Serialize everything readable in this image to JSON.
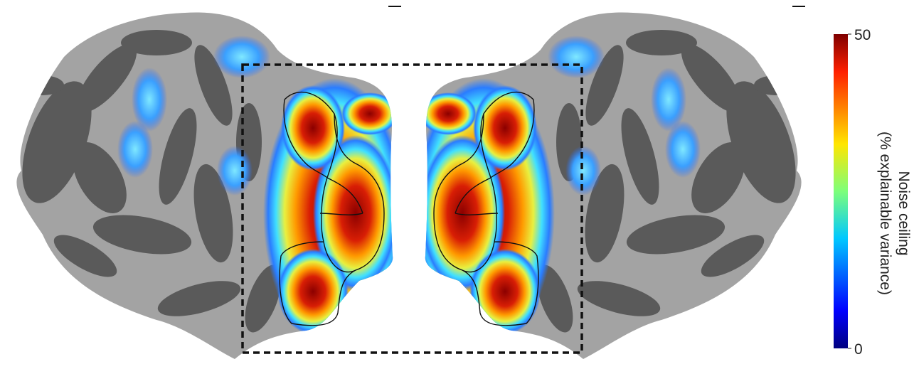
{
  "colorbar": {
    "label_lines": [
      "Noise ceiling",
      "(% explainable variance)"
    ],
    "lim": [
      0,
      50
    ],
    "ticks": [
      0,
      50
    ]
  }
}
